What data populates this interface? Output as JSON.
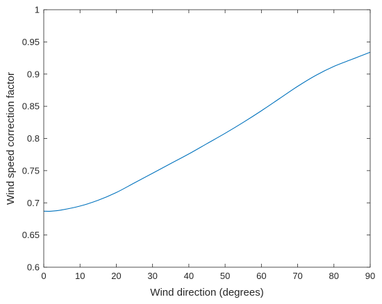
{
  "chart_data": {
    "type": "line",
    "xlabel": "Wind direction (degrees)",
    "ylabel": "Wind speed correction factor",
    "xlim": [
      0,
      90
    ],
    "ylim": [
      0.6,
      1.0
    ],
    "grid": false,
    "xticks": [
      0,
      10,
      20,
      30,
      40,
      50,
      60,
      70,
      80,
      90
    ],
    "yticks": [
      0.6,
      0.65,
      0.7,
      0.75,
      0.8,
      0.85,
      0.9,
      0.95,
      1
    ],
    "xtick_labels": [
      "0",
      "10",
      "20",
      "30",
      "40",
      "50",
      "60",
      "70",
      "80",
      "90"
    ],
    "ytick_labels": [
      "0.6",
      "0.65",
      "0.7",
      "0.75",
      "0.8",
      "0.85",
      "0.9",
      "0.95",
      "1"
    ],
    "colors": {
      "line": "#0072BD",
      "axis": "#262626"
    },
    "series": [
      {
        "x": [
          0,
          2,
          5,
          10,
          15,
          20,
          25,
          30,
          35,
          40,
          45,
          50,
          55,
          60,
          65,
          70,
          75,
          80,
          85,
          90
        ],
        "y": [
          0.687,
          0.687,
          0.689,
          0.695,
          0.704,
          0.716,
          0.731,
          0.746,
          0.761,
          0.776,
          0.792,
          0.808,
          0.825,
          0.843,
          0.862,
          0.881,
          0.898,
          0.912,
          0.923,
          0.934
        ]
      }
    ]
  }
}
